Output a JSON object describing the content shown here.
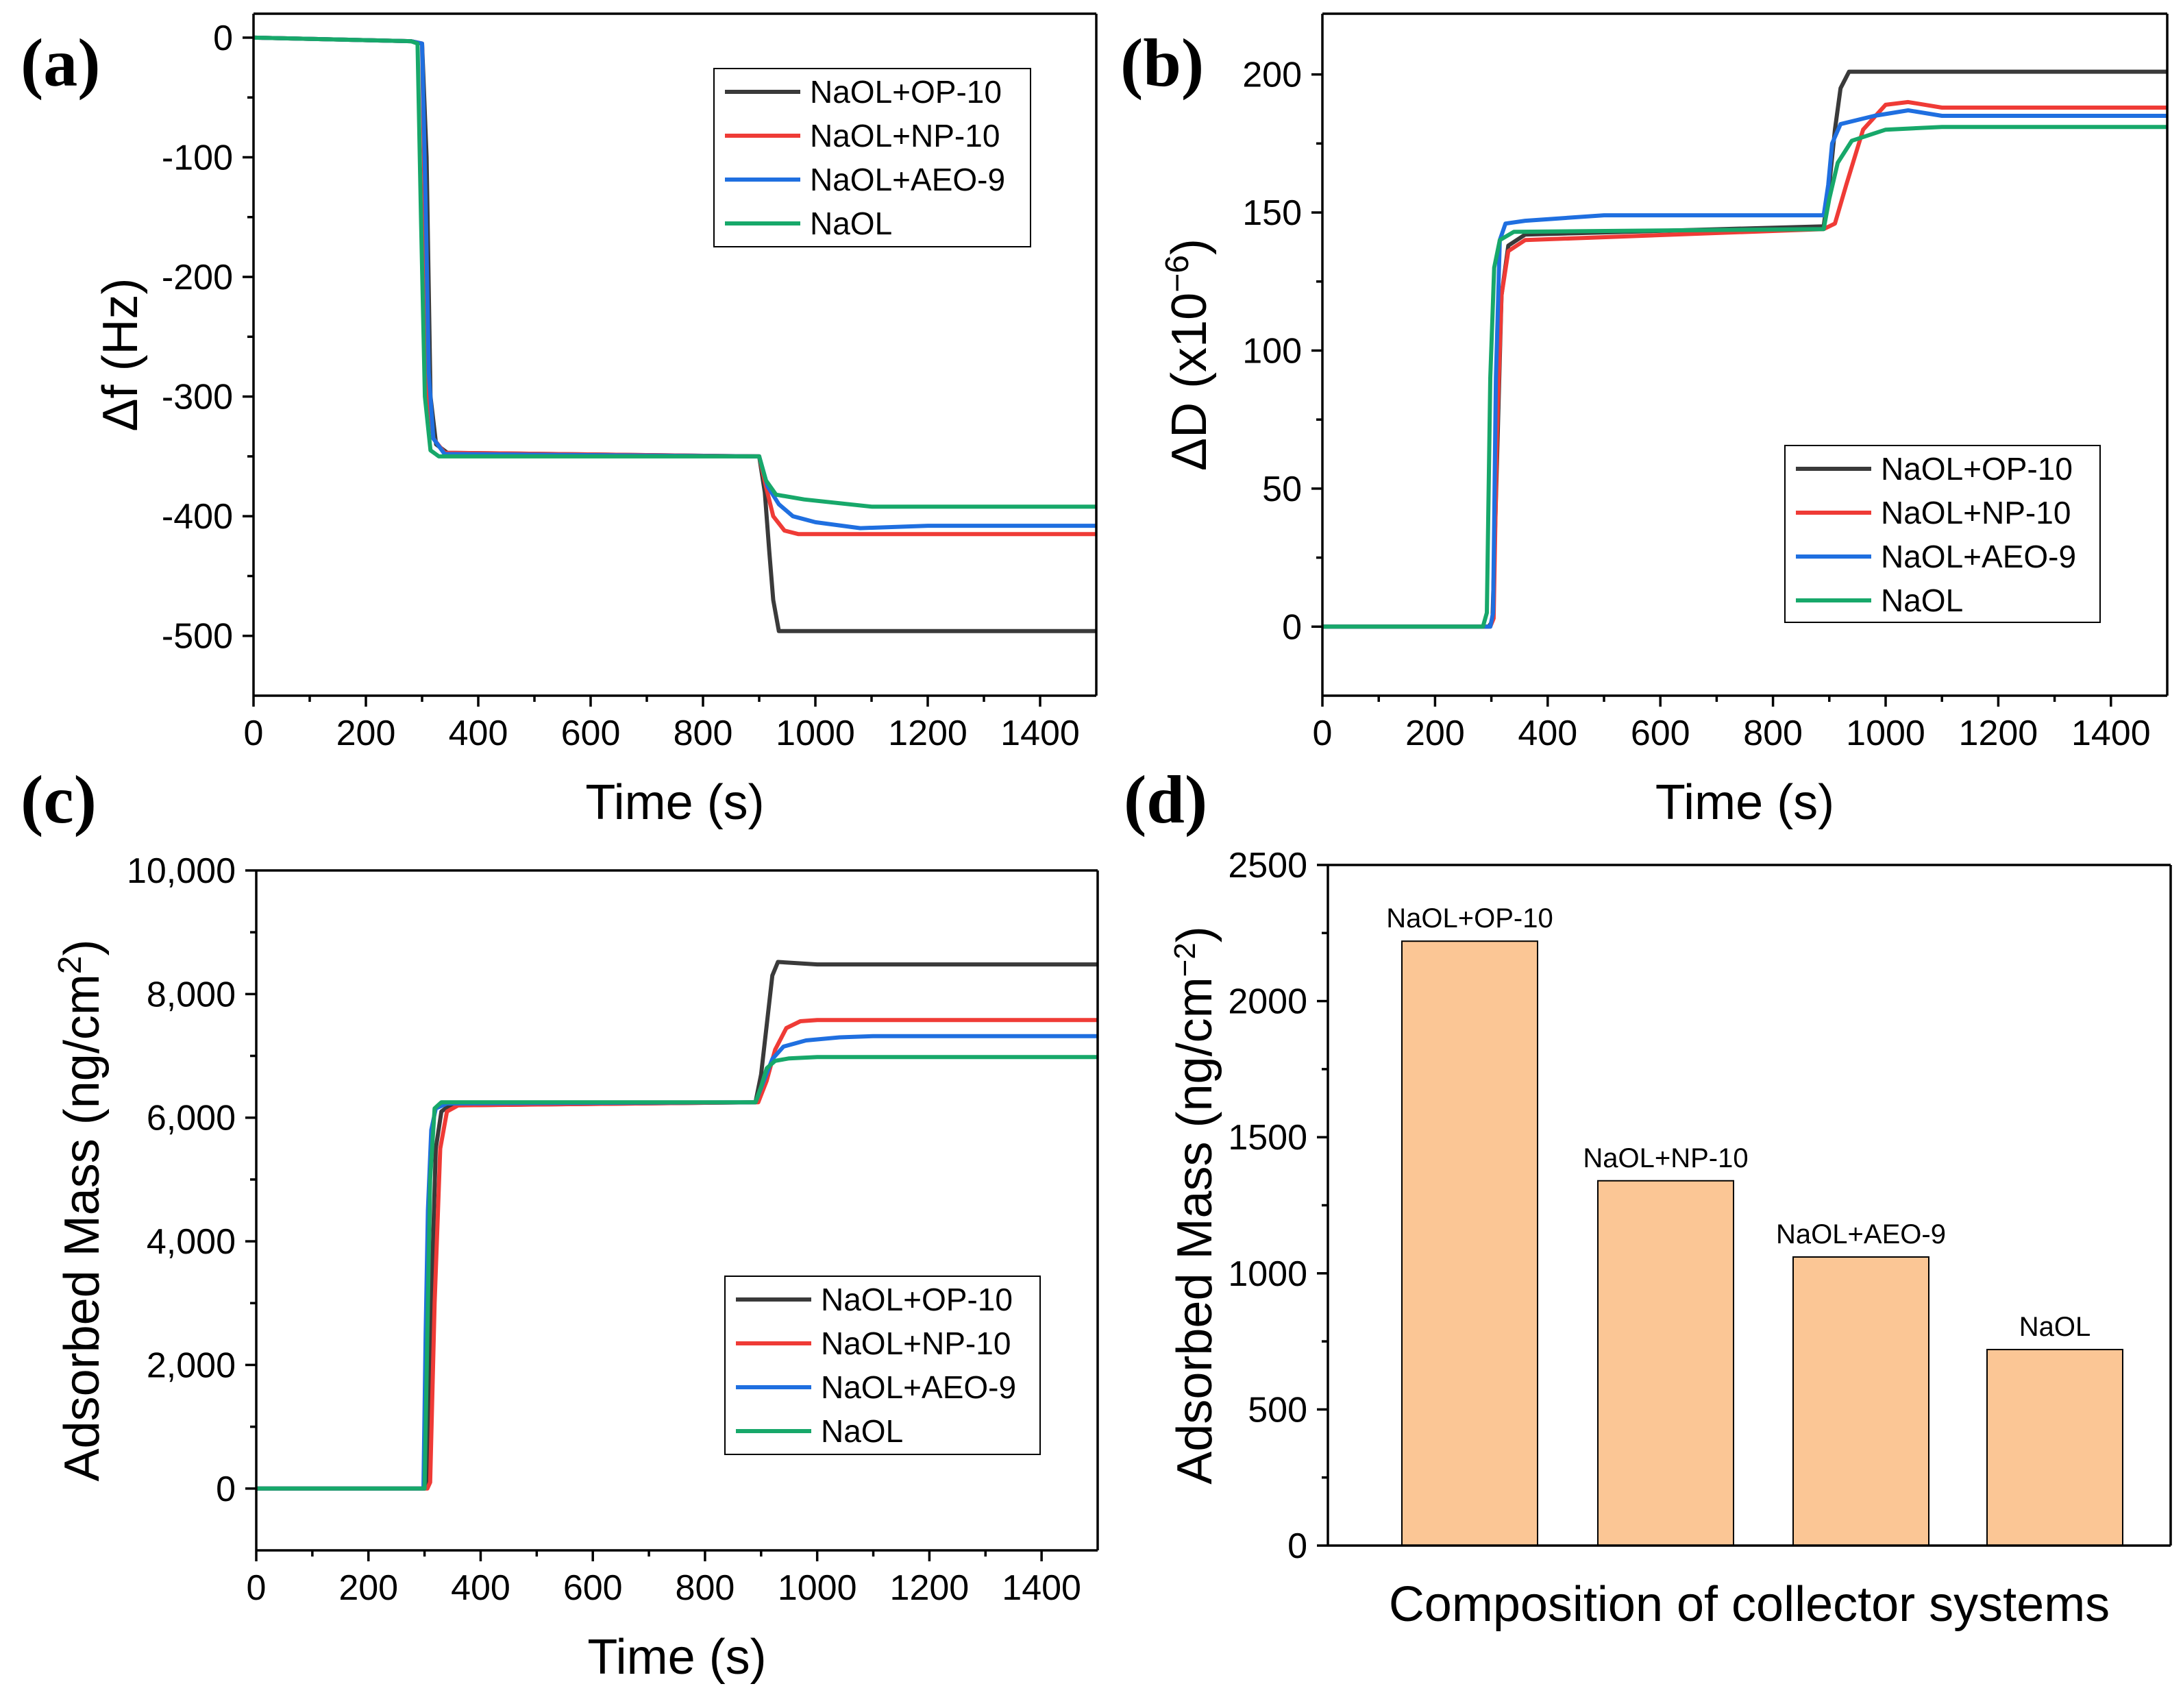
{
  "series_colors": {
    "NaOL+OP-10": "#3a3a3a",
    "NaOL+NP-10": "#ef3b36",
    "NaOL+AEO-9": "#1f6fe0",
    "NaOL": "#17a86a"
  },
  "bar_color": "#fbc695",
  "chart_data": [
    {
      "id": "a",
      "panel_label": "(a)",
      "type": "line",
      "xlabel": "Time (s)",
      "ylabel": "Δf (Hz)",
      "xlim": [
        0,
        1500
      ],
      "ylim": [
        -550,
        20
      ],
      "xticks": [
        0,
        200,
        400,
        600,
        800,
        1000,
        1200,
        1400
      ],
      "yticks": [
        0,
        -100,
        -200,
        -300,
        -400,
        -500
      ],
      "xtick_labels": [
        "0",
        "200",
        "400",
        "600",
        "800",
        "1000",
        "1200",
        "1400"
      ],
      "ytick_labels": [
        "0",
        "-100",
        "-200",
        "-300",
        "-400",
        "-500"
      ],
      "legend": [
        "NaOL+OP-10",
        "NaOL+NP-10",
        "NaOL+AEO-9",
        "NaOL"
      ],
      "legend_position": "top-right",
      "series": [
        {
          "name": "NaOL+OP-10",
          "x": [
            0,
            280,
            300,
            308,
            315,
            325,
            345,
            900,
            910,
            918,
            925,
            935,
            1500
          ],
          "y": [
            0,
            -3,
            -5,
            -100,
            -300,
            -340,
            -347,
            -350,
            -380,
            -430,
            -470,
            -496,
            -496
          ]
        },
        {
          "name": "NaOL+NP-10",
          "x": [
            0,
            280,
            300,
            305,
            312,
            320,
            340,
            900,
            912,
            925,
            945,
            970,
            1500
          ],
          "y": [
            0,
            -3,
            -5,
            -150,
            -300,
            -335,
            -347,
            -350,
            -375,
            -400,
            -412,
            -415,
            -415
          ]
        },
        {
          "name": "NaOL+AEO-9",
          "x": [
            0,
            280,
            300,
            306,
            312,
            320,
            340,
            900,
            915,
            935,
            960,
            1000,
            1080,
            1200,
            1500
          ],
          "y": [
            0,
            -3,
            -5,
            -130,
            -280,
            -335,
            -348,
            -350,
            -375,
            -390,
            -400,
            -405,
            -410,
            -408,
            -408
          ]
        },
        {
          "name": "NaOL",
          "x": [
            0,
            280,
            292,
            298,
            305,
            315,
            330,
            900,
            912,
            930,
            980,
            1100,
            1500
          ],
          "y": [
            0,
            -3,
            -5,
            -150,
            -300,
            -345,
            -350,
            -350,
            -370,
            -382,
            -386,
            -392,
            -392
          ]
        }
      ]
    },
    {
      "id": "b",
      "panel_label": "(b)",
      "type": "line",
      "xlabel": "Time (s)",
      "ylabel": "ΔD (x10",
      "ylabel_sup": "−6",
      "ylabel_end": ")",
      "xlim": [
        0,
        1500
      ],
      "ylim": [
        -25,
        222
      ],
      "xticks": [
        0,
        200,
        400,
        600,
        800,
        1000,
        1200,
        1400
      ],
      "yticks": [
        0,
        50,
        100,
        150,
        200
      ],
      "xtick_labels": [
        "0",
        "200",
        "400",
        "600",
        "800",
        "1000",
        "1200",
        "1400"
      ],
      "ytick_labels": [
        "0",
        "50",
        "100",
        "150",
        "200"
      ],
      "legend": [
        "NaOL+OP-10",
        "NaOL+NP-10",
        "NaOL+AEO-9",
        "NaOL"
      ],
      "legend_position": "lower-right",
      "series": [
        {
          "name": "NaOL+OP-10",
          "x": [
            0,
            295,
            302,
            310,
            318,
            330,
            360,
            890,
            900,
            910,
            920,
            935,
            1500
          ],
          "y": [
            0,
            0,
            2,
            60,
            120,
            138,
            142,
            145,
            160,
            180,
            195,
            201,
            201
          ]
        },
        {
          "name": "NaOL+NP-10",
          "x": [
            0,
            298,
            304,
            310,
            318,
            330,
            360,
            890,
            910,
            930,
            960,
            1000,
            1040,
            1100,
            1500
          ],
          "y": [
            0,
            0,
            3,
            70,
            120,
            136,
            140,
            144,
            146,
            160,
            180,
            189,
            190,
            188,
            188
          ]
        },
        {
          "name": "NaOL+AEO-9",
          "x": [
            0,
            298,
            303,
            308,
            315,
            325,
            360,
            500,
            890,
            898,
            905,
            920,
            980,
            1040,
            1100,
            1500
          ],
          "y": [
            0,
            0,
            5,
            90,
            140,
            146,
            147,
            149,
            149,
            160,
            175,
            182,
            185,
            187,
            185,
            185
          ]
        },
        {
          "name": "NaOL",
          "x": [
            0,
            285,
            292,
            298,
            305,
            315,
            340,
            890,
            900,
            915,
            940,
            1000,
            1100,
            1500
          ],
          "y": [
            0,
            0,
            5,
            90,
            130,
            140,
            143,
            144,
            155,
            168,
            176,
            180,
            181,
            181
          ]
        }
      ]
    },
    {
      "id": "c",
      "panel_label": "(c)",
      "type": "line",
      "xlabel": "Time (s)",
      "ylabel": "Adsorbed Mass (ng/cm",
      "ylabel_sup": "2",
      "ylabel_end": ")",
      "xlim": [
        0,
        1500
      ],
      "ylim": [
        -1000,
        10000
      ],
      "xticks": [
        0,
        200,
        400,
        600,
        800,
        1000,
        1200,
        1400
      ],
      "yticks": [
        0,
        2000,
        4000,
        6000,
        8000,
        10000
      ],
      "xtick_labels": [
        "0",
        "200",
        "400",
        "600",
        "800",
        "1000",
        "1200",
        "1400"
      ],
      "ytick_labels": [
        "0",
        "2,000",
        "4,000",
        "6,000",
        "8,000",
        "10,000"
      ],
      "legend": [
        "NaOL+OP-10",
        "NaOL+NP-10",
        "NaOL+AEO-9",
        "NaOL"
      ],
      "legend_position": "lower-right",
      "series": [
        {
          "name": "NaOL+OP-10",
          "x": [
            0,
            300,
            306,
            312,
            320,
            330,
            345,
            890,
            900,
            910,
            920,
            930,
            1000,
            1500
          ],
          "y": [
            0,
            0,
            100,
            3000,
            5500,
            6100,
            6200,
            6250,
            6700,
            7500,
            8300,
            8520,
            8480,
            8480
          ]
        },
        {
          "name": "NaOL+NP-10",
          "x": [
            0,
            305,
            310,
            318,
            328,
            340,
            360,
            895,
            910,
            925,
            945,
            970,
            1000,
            1500
          ],
          "y": [
            0,
            0,
            100,
            3000,
            5500,
            6100,
            6200,
            6250,
            6600,
            7100,
            7450,
            7560,
            7580,
            7580
          ]
        },
        {
          "name": "NaOL+AEO-9",
          "x": [
            0,
            298,
            302,
            306,
            312,
            320,
            340,
            890,
            905,
            920,
            940,
            980,
            1040,
            1100,
            1500
          ],
          "y": [
            0,
            0,
            2500,
            4500,
            5800,
            6150,
            6230,
            6250,
            6600,
            6950,
            7150,
            7250,
            7300,
            7320,
            7320
          ]
        },
        {
          "name": "NaOL",
          "x": [
            0,
            300,
            304,
            310,
            318,
            330,
            890,
            900,
            910,
            925,
            950,
            1000,
            1500
          ],
          "y": [
            0,
            0,
            2000,
            5000,
            6150,
            6250,
            6250,
            6500,
            6800,
            6920,
            6960,
            6980,
            6980
          ]
        }
      ]
    },
    {
      "id": "d",
      "panel_label": "(d)",
      "type": "bar",
      "xlabel": "Composition of collector systems",
      "ylabel": "Adsorbed Mass (ng/cm",
      "ylabel_sup": "−2",
      "ylabel_end": ")",
      "ylim": [
        0,
        2500
      ],
      "yticks": [
        0,
        500,
        1000,
        1500,
        2000,
        2500
      ],
      "ytick_labels": [
        "0",
        "500",
        "1000",
        "1500",
        "2000",
        "2500"
      ],
      "categories": [
        "NaOL+OP-10",
        "NaOL+NP-10",
        "NaOL+AEO-9",
        "NaOL"
      ],
      "values": [
        2220,
        1340,
        1060,
        720
      ]
    }
  ]
}
